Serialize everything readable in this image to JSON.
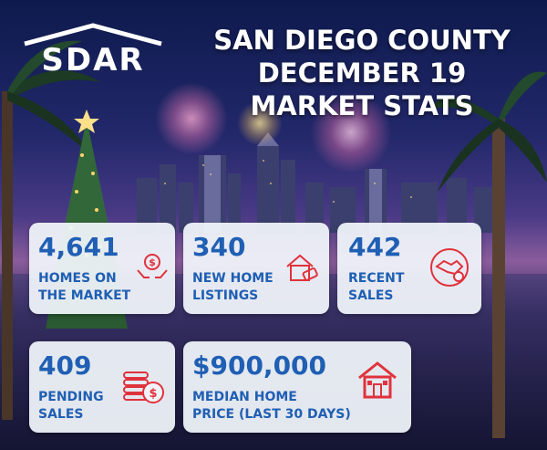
{
  "logo": {
    "text": "SDAR"
  },
  "title": {
    "line1": "SAN DIEGO COUNTY",
    "line2": "DECEMBER 19",
    "line3": "MARKET STATS"
  },
  "stats": [
    {
      "value": "4,641",
      "label_line1": "HOMES ON",
      "label_line2": "THE MARKET",
      "icon": "hands-money-icon"
    },
    {
      "value": "340",
      "label_line1": "NEW HOME",
      "label_line2": "LISTINGS",
      "icon": "house-tag-icon"
    },
    {
      "value": "442",
      "label_line1": "RECENT",
      "label_line2": "SALES",
      "icon": "handshake-icon"
    },
    {
      "value": "409",
      "label_line1": "PENDING",
      "label_line2": "SALES",
      "icon": "coins-icon"
    },
    {
      "value": "$900,000",
      "label_line1": "MEDIAN HOME",
      "label_line2": "PRICE (LAST 30 DAYS)",
      "icon": "house-icon"
    }
  ],
  "colors": {
    "accent_blue": "#1f5fb4",
    "icon_red": "#e0323c",
    "card_bg": "#f0f4fa"
  }
}
